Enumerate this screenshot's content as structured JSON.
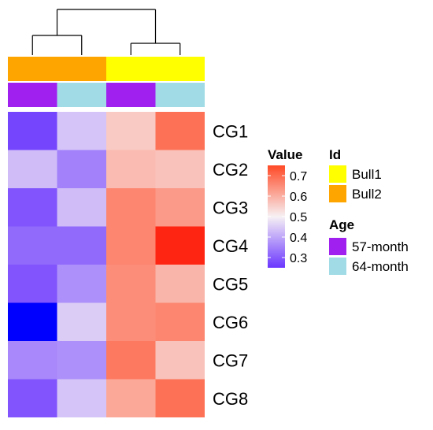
{
  "chart_data": {
    "type": "heatmap",
    "title": "",
    "rows": [
      "CG1",
      "CG2",
      "CG3",
      "CG4",
      "CG5",
      "CG6",
      "CG7",
      "CG8"
    ],
    "columns": [
      {
        "id": "Bull2",
        "age": "57-month"
      },
      {
        "id": "Bull2",
        "age": "64-month"
      },
      {
        "id": "Bull1",
        "age": "57-month"
      },
      {
        "id": "Bull1",
        "age": "64-month"
      }
    ],
    "values": [
      [
        0.27,
        0.44,
        0.56,
        0.69
      ],
      [
        0.43,
        0.35,
        0.58,
        0.57
      ],
      [
        0.29,
        0.43,
        0.66,
        0.63
      ],
      [
        0.32,
        0.32,
        0.66,
        0.76
      ],
      [
        0.29,
        0.37,
        0.65,
        0.59
      ],
      [
        0.22,
        0.45,
        0.65,
        0.66
      ],
      [
        0.36,
        0.37,
        0.68,
        0.57
      ],
      [
        0.29,
        0.44,
        0.61,
        0.69
      ]
    ],
    "color_scale": {
      "title": "Value",
      "ticks": [
        "0.7",
        "0.6",
        "0.5",
        "0.4",
        "0.3"
      ],
      "tick_values": [
        0.7,
        0.6,
        0.5,
        0.4,
        0.3
      ],
      "range": [
        0.25,
        0.75
      ],
      "low_color": "#6a36ff",
      "mid_color": "#f7f1f4",
      "high_color": "#ff4a26",
      "min_cell_color": "#0000ff",
      "max_cell_color": "#ff0000"
    },
    "annotations": {
      "id": {
        "title": "Id",
        "levels": [
          {
            "label": "Bull1",
            "color": "#ffff00"
          },
          {
            "label": "Bull2",
            "color": "#ffa500"
          }
        ]
      },
      "age": {
        "title": "Age",
        "levels": [
          {
            "label": "57-month",
            "color": "#a020f0"
          },
          {
            "label": "64-month",
            "color": "#a0dbe6"
          }
        ]
      }
    },
    "column_dendrogram": {
      "merges": [
        {
          "left": 0,
          "right": 1
        },
        {
          "left": 2,
          "right": 3
        },
        {
          "left": "A",
          "right": "B"
        }
      ]
    },
    "legend_position": "right"
  }
}
